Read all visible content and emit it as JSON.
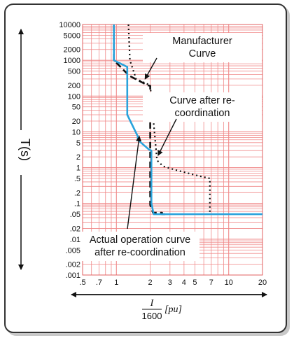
{
  "chart_data": {
    "type": "line",
    "x_scale": "log",
    "y_scale": "log",
    "xlim": [
      0.5,
      20
    ],
    "ylim": [
      0.001,
      10000
    ],
    "grid": true,
    "x_ticks": [
      ".5",
      ".7",
      "1",
      "2",
      "3",
      "4",
      "5",
      "7",
      "10",
      "20"
    ],
    "y_ticks": [
      "10000",
      "5000",
      "2000",
      "1000",
      "500",
      "200",
      "100",
      "50",
      "20",
      "10",
      "5",
      "2",
      "1",
      ".5",
      ".2",
      ".1",
      ".05",
      ".02",
      ".01",
      ".005",
      ".002",
      ".001"
    ],
    "ylabel": "T(s)",
    "xlabel": {
      "numerator": "I",
      "denominator": "1600",
      "unit": "[pu]"
    },
    "series": [
      {
        "style": "dashed-black",
        "color": "#111111",
        "x": [
          0.95,
          0.95,
          1.3,
          1.9,
          1.9,
          2.0,
          2.0,
          2.12,
          2.55,
          2.55,
          2.85
        ],
        "y": [
          10000,
          1000,
          370,
          200,
          200,
          195,
          0.09,
          0.055,
          0.055,
          0.05,
          0.05
        ]
      },
      {
        "style": "dotted-black",
        "color": "#111111",
        "x": [
          1.28,
          1.32,
          1.5,
          2.0,
          2.3,
          2.6,
          3.2,
          4.2,
          5.5,
          6.8,
          6.8
        ],
        "y": [
          10000,
          1000,
          300,
          200,
          1.6,
          1.1,
          0.9,
          0.72,
          0.58,
          0.5,
          0.05
        ]
      },
      {
        "style": "solid-blue",
        "color": "#2aa3dc",
        "x": [
          0.95,
          0.95,
          1.25,
          1.25,
          1.55,
          1.55,
          1.95,
          2.05,
          2.05,
          2.15,
          2.7,
          20
        ],
        "y": [
          10000,
          1000,
          650,
          30,
          7.5,
          6.0,
          3.2,
          3.0,
          0.1,
          0.05,
          0.05,
          0.05
        ]
      }
    ],
    "annotations": [
      {
        "lines": [
          "Manufacturer",
          "Curve"
        ],
        "target_x": 1.8,
        "target_y": 300
      },
      {
        "lines": [
          "Curve after re-",
          "coordination"
        ],
        "target_x": 2.35,
        "target_y": 2.2
      },
      {
        "lines": [
          "Actual operation curve",
          "after re-coordination"
        ],
        "target_x": 1.6,
        "target_y": 7.5
      }
    ]
  }
}
